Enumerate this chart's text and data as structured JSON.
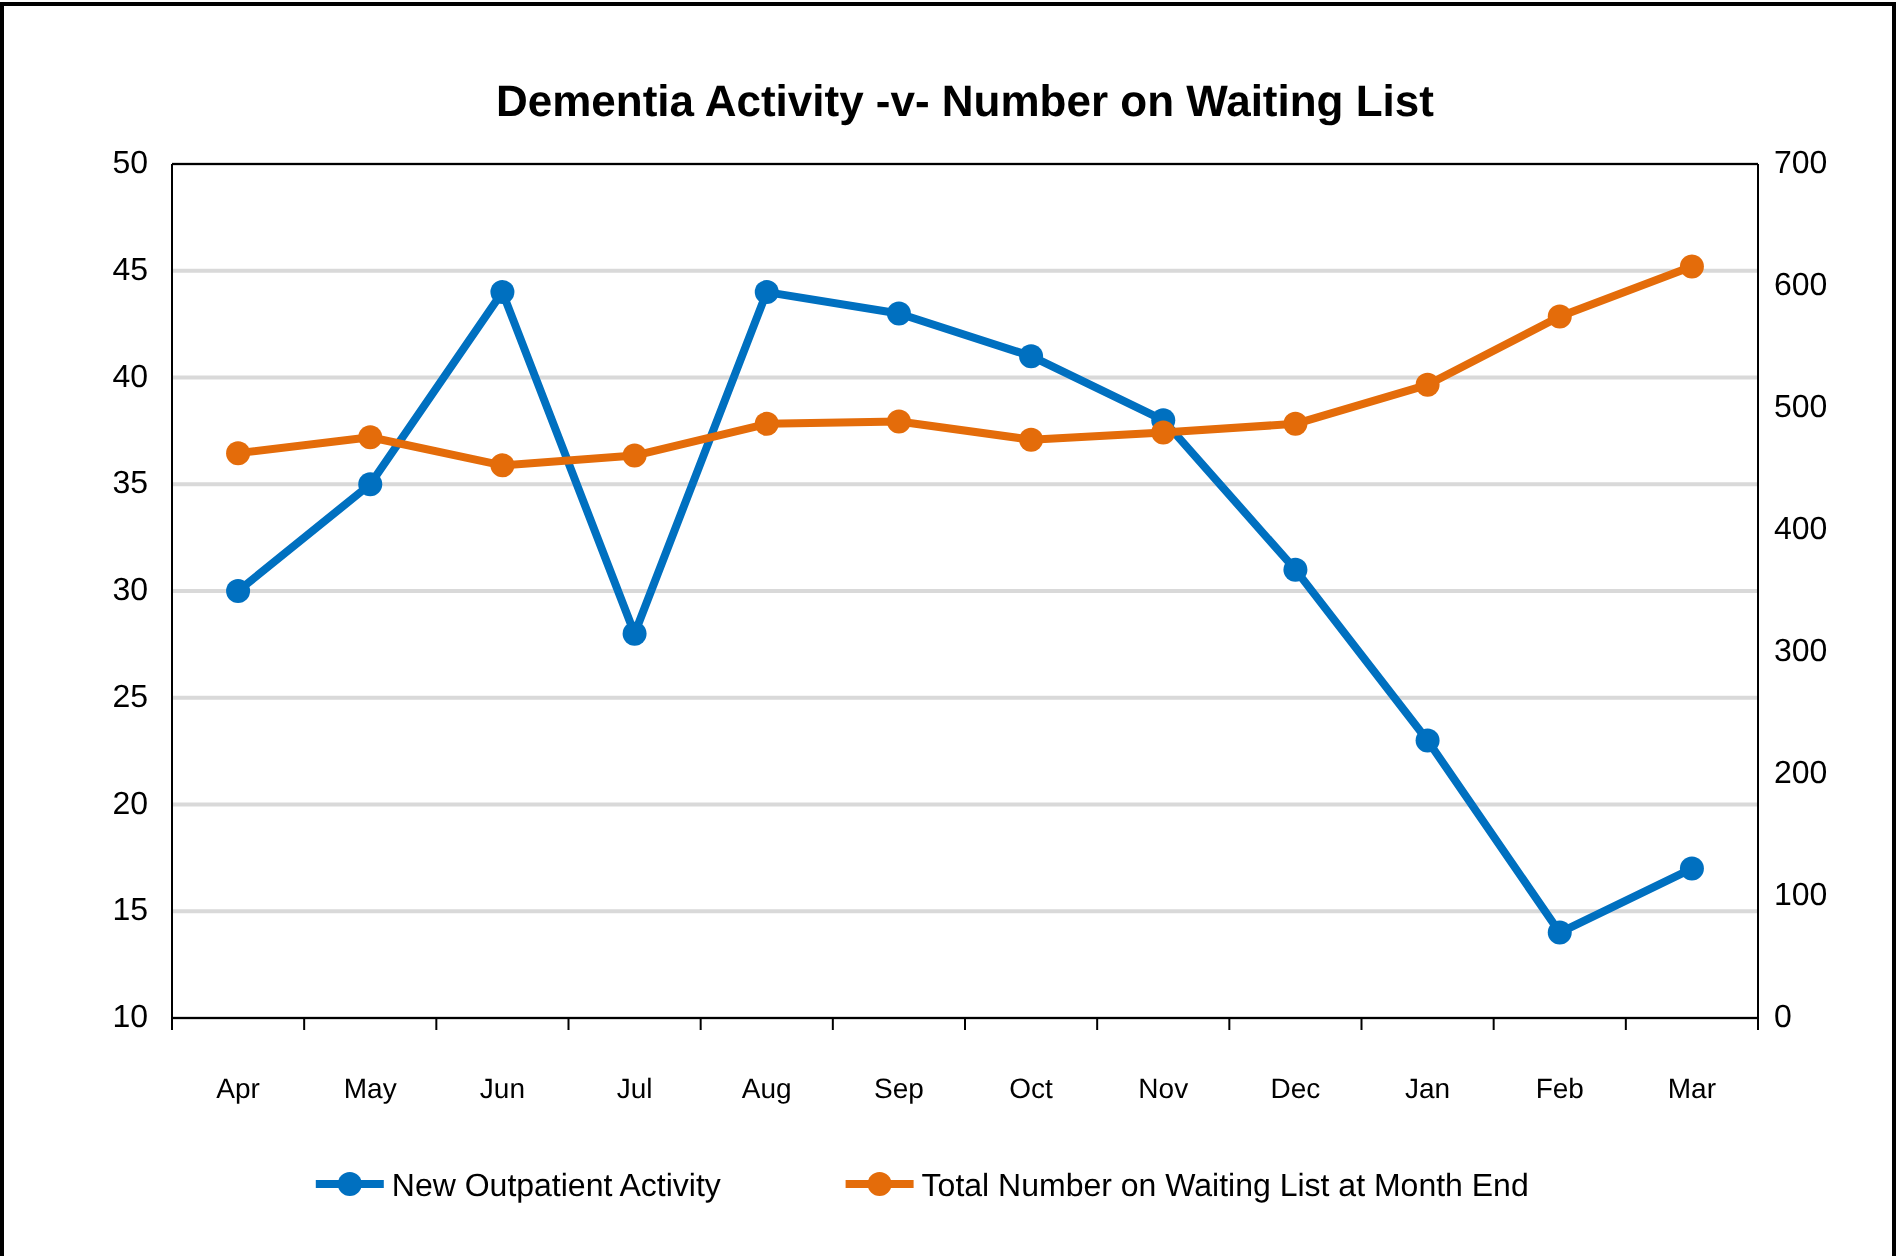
{
  "chart_data": {
    "type": "line",
    "title": "Dementia Activity -v- Number on Waiting List",
    "categories": [
      "Apr",
      "May",
      "Jun",
      "Jul",
      "Aug",
      "Sep",
      "Oct",
      "Nov",
      "Dec",
      "Jan",
      "Feb",
      "Mar"
    ],
    "series": [
      {
        "name": "New Outpatient Activity",
        "color": "#0070c0",
        "values": [
          30,
          35,
          44,
          28,
          44,
          43,
          41,
          38,
          31,
          23,
          14,
          17
        ]
      },
      {
        "name": "Total Number on Waiting List at Month End",
        "color": "#e46c0a",
        "axis": "y2",
        "values": [
          463,
          476,
          453,
          461,
          487,
          489,
          474,
          480,
          487,
          519,
          575,
          616
        ]
      }
    ],
    "ylim": [
      10,
      50
    ],
    "yticks": [
      10,
      15,
      20,
      25,
      30,
      35,
      40,
      45,
      50
    ],
    "y2lim": [
      0,
      700
    ],
    "y2ticks": [
      0,
      100,
      200,
      300,
      400,
      500,
      600,
      700
    ],
    "grid": "y",
    "legend": "bottom",
    "marker": "circle",
    "line_style": "solid"
  }
}
